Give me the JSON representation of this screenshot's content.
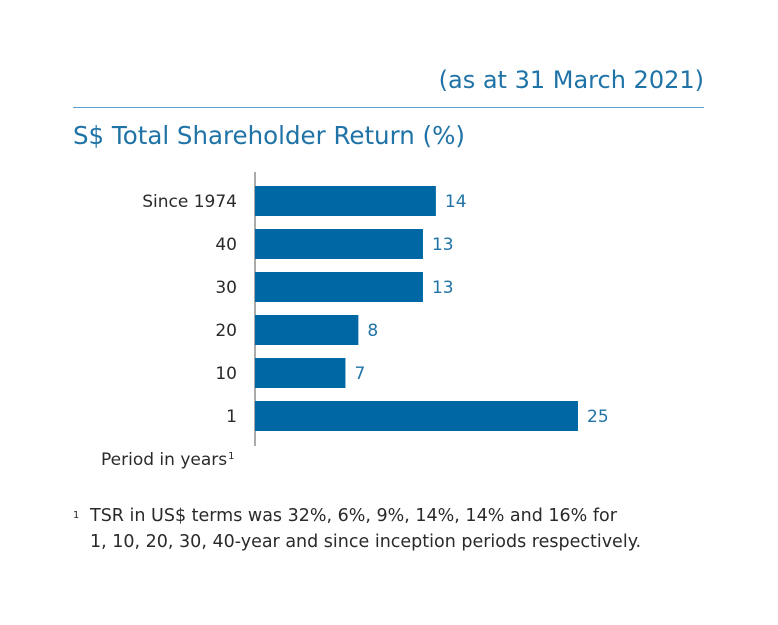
{
  "header": {
    "as_at": "(as at 31 March 2021)"
  },
  "chart_data": {
    "type": "bar",
    "orientation": "horizontal",
    "title": "S$ Total Shareholder Return (%)",
    "xlabel": "Period in years",
    "xlabel_note_marker": "1",
    "categories": [
      "Since 1974",
      "40",
      "30",
      "20",
      "10",
      "1"
    ],
    "values": [
      14,
      13,
      13,
      8,
      7,
      25
    ],
    "data_labels": [
      "14",
      "13",
      "13",
      "8",
      "7",
      "25"
    ],
    "bar_color": "#0067a5",
    "label_color": "#1f73a6",
    "grid": false,
    "legend": "none"
  },
  "footnote": {
    "marker": "1",
    "lines": [
      "TSR in US$ terms was 32%, 6%, 9%, 14%, 14% and 16% for",
      "1, 10, 20, 30, 40-year and since inception periods respectively."
    ]
  }
}
